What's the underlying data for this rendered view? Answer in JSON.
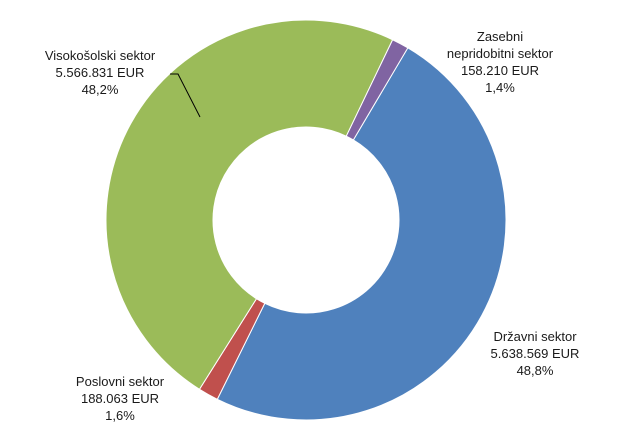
{
  "chart_data": {
    "type": "pie",
    "donut": true,
    "slices": [
      {
        "name": "Državni sektor",
        "amount": "5.638.569 EUR",
        "value": 5638569,
        "percent": "48,8%",
        "color": "#4f81bd"
      },
      {
        "name": "Poslovni sektor",
        "amount": "188.063 EUR",
        "value": 188063,
        "percent": "1,6%",
        "color": "#c0504d"
      },
      {
        "name": "Visokošolski sektor",
        "amount": "5.566.831 EUR",
        "value": 5566831,
        "percent": "48,2%",
        "color": "#9bbb59"
      },
      {
        "name_lines": [
          "Zasebni",
          "nepridobitni sektor"
        ],
        "name": "Zasebni nepridobitni sektor",
        "amount": "158.210 EUR",
        "value": 158210,
        "percent": "1,4%",
        "color": "#8064a2"
      }
    ]
  }
}
